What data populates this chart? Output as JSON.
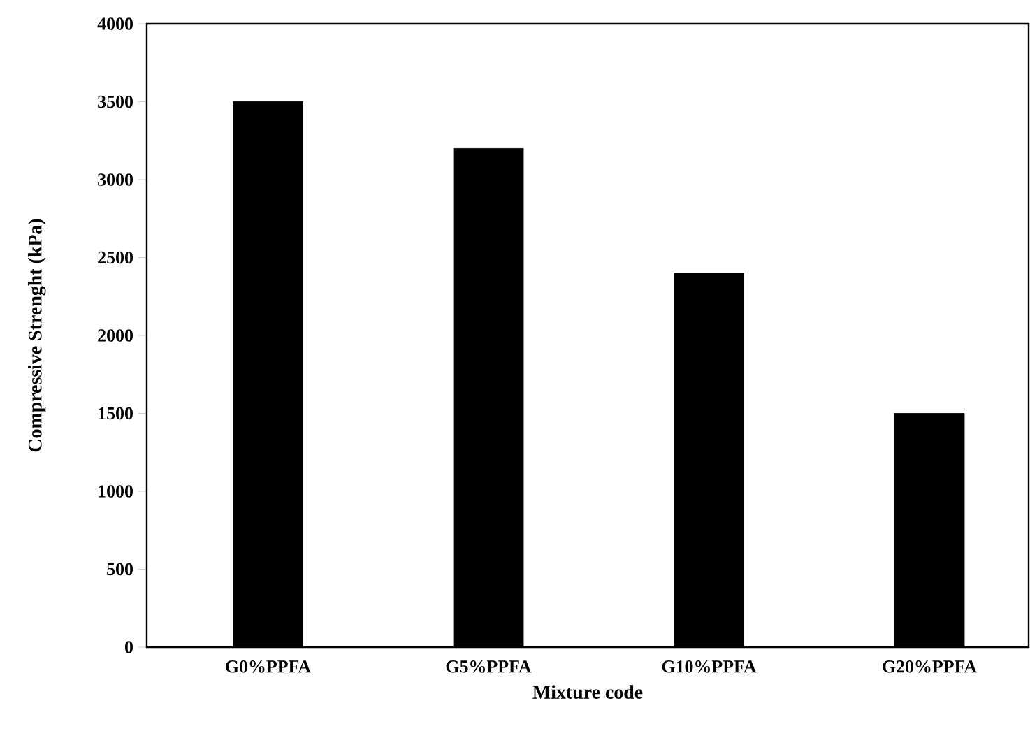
{
  "chart_data": {
    "type": "bar",
    "xlabel": "Mixture code",
    "ylabel": "Compressive Strenght (kPa)",
    "categories": [
      "G0%PPFA",
      "G5%PPFA",
      "G10%PPFA",
      "G20%PPFA"
    ],
    "values": [
      3500,
      3200,
      2400,
      1500
    ],
    "color": "#000000",
    "ylim": [
      0,
      4000
    ],
    "yticks": [
      0,
      500,
      1000,
      1500,
      2000,
      2500,
      3000,
      3500,
      4000
    ],
    "grid": false
  }
}
